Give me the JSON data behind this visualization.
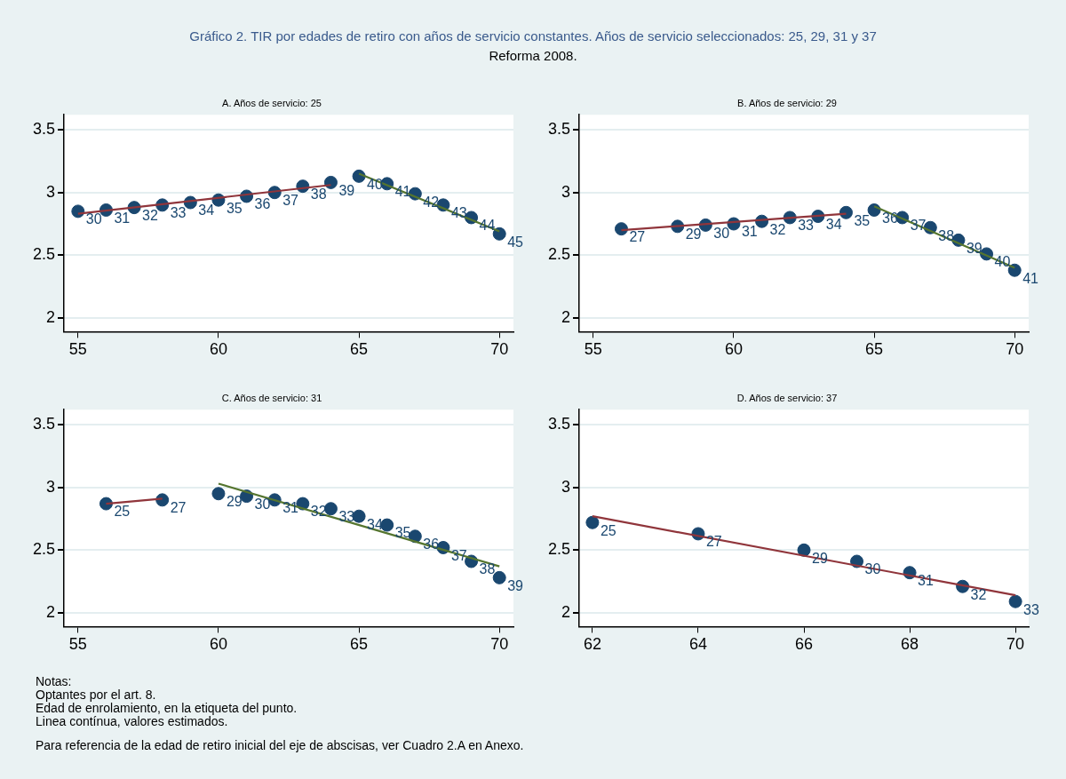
{
  "chart_data": [
    {
      "type": "other",
      "title": "Gráfico 2. TIR por edades de retiro con años de servicio constantes. Años de servicio seleccionados: 25, 29, 31 y 37",
      "subtitle": "Reforma 2008."
    },
    {
      "type": "scatter",
      "title": "A. Años de servicio: 25",
      "xlim": [
        54.5,
        70.5
      ],
      "xticks": [
        55,
        60,
        65,
        70
      ],
      "ylim": [
        1.89,
        3.62
      ],
      "yticks": [
        2,
        2.5,
        3,
        3.5
      ],
      "grid": "y",
      "series": [
        {
          "type": "scatter",
          "marker": "circle",
          "color": "#1a476f",
          "x": [
            55,
            56,
            57,
            58,
            59,
            60,
            61,
            62,
            63,
            64,
            65,
            66,
            67,
            68,
            69,
            70
          ],
          "values": [
            2.85,
            2.86,
            2.88,
            2.9,
            2.92,
            2.94,
            2.97,
            3.0,
            3.05,
            3.08,
            3.13,
            3.07,
            2.99,
            2.9,
            2.8,
            2.67
          ]
        },
        {
          "type": "line",
          "marker": "none",
          "color": "#90353b",
          "x": [
            55,
            64
          ],
          "values": [
            2.83,
            3.06
          ]
        },
        {
          "type": "line",
          "marker": "none",
          "color": "#55752f",
          "x": [
            65,
            70
          ],
          "values": [
            3.15,
            2.69
          ]
        }
      ],
      "annotations": [
        {
          "text": "30",
          "x": 55,
          "y": 2.85
        },
        {
          "text": "31",
          "x": 56,
          "y": 2.86
        },
        {
          "text": "32",
          "x": 57,
          "y": 2.88
        },
        {
          "text": "33",
          "x": 58,
          "y": 2.9
        },
        {
          "text": "34",
          "x": 59,
          "y": 2.92
        },
        {
          "text": "35",
          "x": 60,
          "y": 2.94
        },
        {
          "text": "36",
          "x": 61,
          "y": 2.97
        },
        {
          "text": "37",
          "x": 62,
          "y": 3.0
        },
        {
          "text": "38",
          "x": 63,
          "y": 3.05
        },
        {
          "text": "39",
          "x": 64,
          "y": 3.08
        },
        {
          "text": "40",
          "x": 65,
          "y": 3.13
        },
        {
          "text": "41",
          "x": 66,
          "y": 3.07
        },
        {
          "text": "42",
          "x": 67,
          "y": 2.99
        },
        {
          "text": "43",
          "x": 68,
          "y": 2.9
        },
        {
          "text": "44",
          "x": 69,
          "y": 2.8
        },
        {
          "text": "45",
          "x": 70,
          "y": 2.67
        }
      ]
    },
    {
      "type": "scatter",
      "title": "B. Años de servicio: 29",
      "xlim": [
        54.5,
        70.5
      ],
      "xticks": [
        55,
        60,
        65,
        70
      ],
      "ylim": [
        1.89,
        3.62
      ],
      "yticks": [
        2,
        2.5,
        3,
        3.5
      ],
      "grid": "y",
      "series": [
        {
          "type": "scatter",
          "marker": "circle",
          "color": "#1a476f",
          "x": [
            56,
            58,
            59,
            60,
            61,
            62,
            63,
            64,
            65,
            66,
            67,
            68,
            69,
            70
          ],
          "values": [
            2.71,
            2.73,
            2.74,
            2.75,
            2.77,
            2.8,
            2.81,
            2.84,
            2.86,
            2.8,
            2.72,
            2.62,
            2.51,
            2.38
          ]
        },
        {
          "type": "line",
          "marker": "none",
          "color": "#90353b",
          "x": [
            56,
            64
          ],
          "values": [
            2.7,
            2.83
          ]
        },
        {
          "type": "line",
          "marker": "none",
          "color": "#55752f",
          "x": [
            65,
            70
          ],
          "values": [
            2.89,
            2.4
          ]
        }
      ],
      "annotations": [
        {
          "text": "27",
          "x": 56,
          "y": 2.71
        },
        {
          "text": "29",
          "x": 58,
          "y": 2.73
        },
        {
          "text": "30",
          "x": 59,
          "y": 2.74
        },
        {
          "text": "31",
          "x": 60,
          "y": 2.75
        },
        {
          "text": "32",
          "x": 61,
          "y": 2.77
        },
        {
          "text": "33",
          "x": 62,
          "y": 2.8
        },
        {
          "text": "34",
          "x": 63,
          "y": 2.81
        },
        {
          "text": "35",
          "x": 64,
          "y": 2.84
        },
        {
          "text": "36",
          "x": 65,
          "y": 2.86
        },
        {
          "text": "37",
          "x": 66,
          "y": 2.8
        },
        {
          "text": "38",
          "x": 67,
          "y": 2.72
        },
        {
          "text": "39",
          "x": 68,
          "y": 2.62
        },
        {
          "text": "40",
          "x": 69,
          "y": 2.51
        },
        {
          "text": "41",
          "x": 70,
          "y": 2.38
        }
      ]
    },
    {
      "type": "scatter",
      "title": "C. Años de servicio: 31",
      "xlim": [
        54.5,
        70.5
      ],
      "xticks": [
        55,
        60,
        65,
        70
      ],
      "ylim": [
        1.89,
        3.62
      ],
      "yticks": [
        2,
        2.5,
        3,
        3.5
      ],
      "grid": "y",
      "series": [
        {
          "type": "scatter",
          "marker": "circle",
          "color": "#1a476f",
          "x": [
            56,
            58,
            60,
            61,
            62,
            63,
            64,
            65,
            66,
            67,
            68,
            69,
            70
          ],
          "values": [
            2.87,
            2.9,
            2.95,
            2.93,
            2.9,
            2.87,
            2.83,
            2.77,
            2.7,
            2.61,
            2.52,
            2.41,
            2.28
          ]
        },
        {
          "type": "line",
          "marker": "none",
          "color": "#90353b",
          "x": [
            56,
            58
          ],
          "values": [
            2.87,
            2.91
          ]
        },
        {
          "type": "line",
          "marker": "none",
          "color": "#55752f",
          "x": [
            60,
            70
          ],
          "values": [
            3.03,
            2.37
          ]
        }
      ],
      "annotations": [
        {
          "text": "25",
          "x": 56,
          "y": 2.87
        },
        {
          "text": "27",
          "x": 58,
          "y": 2.9
        },
        {
          "text": "29",
          "x": 60,
          "y": 2.95
        },
        {
          "text": "30",
          "x": 61,
          "y": 2.93
        },
        {
          "text": "31",
          "x": 62,
          "y": 2.9
        },
        {
          "text": "32",
          "x": 63,
          "y": 2.87
        },
        {
          "text": "33",
          "x": 64,
          "y": 2.83
        },
        {
          "text": "34",
          "x": 65,
          "y": 2.77
        },
        {
          "text": "35",
          "x": 66,
          "y": 2.7
        },
        {
          "text": "36",
          "x": 67,
          "y": 2.61
        },
        {
          "text": "37",
          "x": 68,
          "y": 2.52
        },
        {
          "text": "38",
          "x": 69,
          "y": 2.41
        },
        {
          "text": "39",
          "x": 70,
          "y": 2.28
        }
      ]
    },
    {
      "type": "scatter",
      "title": "D. Años de servicio: 37",
      "xlim": [
        61.75,
        70.25
      ],
      "xticks": [
        62,
        64,
        66,
        68,
        70
      ],
      "ylim": [
        1.89,
        3.62
      ],
      "yticks": [
        2,
        2.5,
        3,
        3.5
      ],
      "grid": "y",
      "series": [
        {
          "type": "scatter",
          "marker": "circle",
          "color": "#1a476f",
          "x": [
            62,
            64,
            66,
            67,
            68,
            69,
            70
          ],
          "values": [
            2.72,
            2.63,
            2.5,
            2.41,
            2.32,
            2.21,
            2.09
          ]
        },
        {
          "type": "line",
          "marker": "none",
          "color": "#90353b",
          "x": [
            62,
            70
          ],
          "values": [
            2.77,
            2.14
          ]
        }
      ],
      "annotations": [
        {
          "text": "25",
          "x": 62,
          "y": 2.72
        },
        {
          "text": "27",
          "x": 64,
          "y": 2.63
        },
        {
          "text": "29",
          "x": 66,
          "y": 2.5
        },
        {
          "text": "30",
          "x": 67,
          "y": 2.41
        },
        {
          "text": "31",
          "x": 68,
          "y": 2.32
        },
        {
          "text": "32",
          "x": 69,
          "y": 2.21
        },
        {
          "text": "33",
          "x": 70,
          "y": 2.09
        }
      ]
    },
    {
      "type": "other",
      "annotations": [
        "Notas:",
        "Optantes por el art. 8.",
        "Edad de enrolamiento, en la etiqueta del punto.",
        "Linea contínua, valores estimados.",
        "Para referencia de la edad de retiro inicial del eje de abscisas, ver Cuadro 2.A en Anexo."
      ]
    }
  ]
}
